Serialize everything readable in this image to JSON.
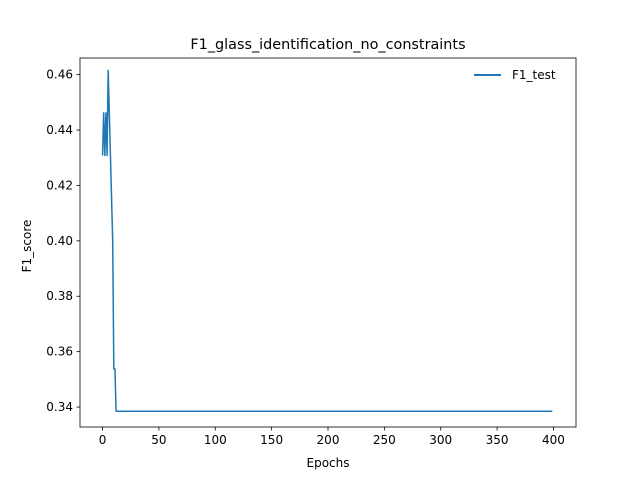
{
  "chart_data": {
    "type": "line",
    "title": "F1_glass_identification_no_constraints",
    "xlabel": "Epochs",
    "ylabel": "F1_score",
    "xlim": [
      -20,
      420
    ],
    "ylim": [
      0.3328,
      0.466
    ],
    "xticks": [
      0,
      50,
      100,
      150,
      200,
      250,
      300,
      350,
      400
    ],
    "yticks": [
      0.34,
      0.36,
      0.38,
      0.4,
      0.42,
      0.44,
      0.46
    ],
    "grid": false,
    "legend_position": "top-right",
    "series": [
      {
        "name": "F1_test",
        "color": "#1f77b4",
        "x": [
          0,
          1,
          2,
          3,
          4,
          5,
          6,
          7,
          8,
          9,
          10,
          11,
          12,
          13,
          399
        ],
        "y": [
          0.4308,
          0.4462,
          0.4308,
          0.4462,
          0.4308,
          0.4615,
          0.4462,
          0.4308,
          0.4154,
          0.4,
          0.3538,
          0.3538,
          0.3385,
          0.3385,
          0.3385
        ]
      }
    ]
  }
}
